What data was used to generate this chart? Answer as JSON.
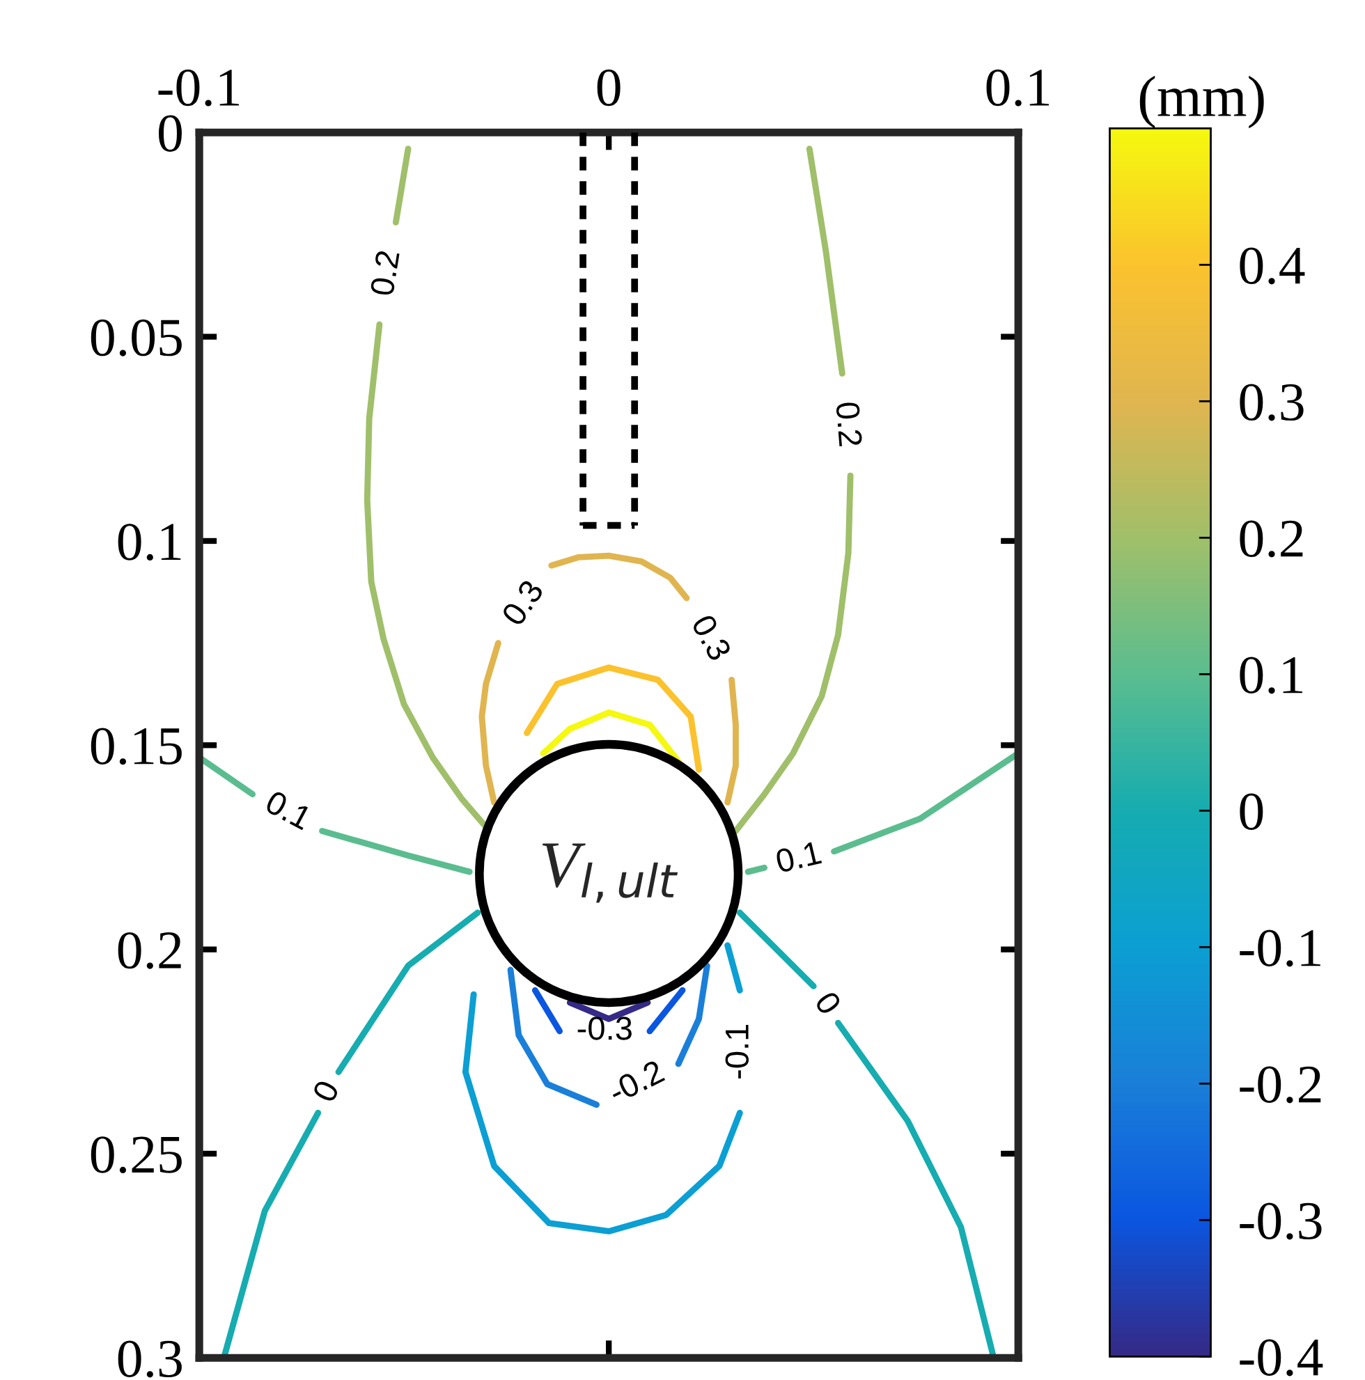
{
  "chart_data": {
    "type": "line",
    "clabel": "(mm)",
    "clim": [
      -0.4,
      0.5
    ],
    "cticks": [
      -0.4,
      -0.3,
      -0.2,
      -0.1,
      0,
      0.1,
      0.2,
      0.3,
      0.4
    ],
    "xlim": [
      -0.1,
      0.1
    ],
    "xticks": [
      -0.1,
      0,
      0.1
    ],
    "ylim": [
      0.3,
      0
    ],
    "yticks": [
      0,
      0.05,
      0.1,
      0.15,
      0.2,
      0.25,
      0.3
    ],
    "line_style": "solid",
    "series": [
      {
        "color": "#352a87",
        "x": [
          -0.0095,
          0,
          0.0095
        ],
        "values": [
          0.213,
          0.217,
          0.213
        ]
      },
      {
        "name": "-0.3",
        "color": "#0b56e0",
        "x": [
          -0.018,
          -0.012,
          null,
          0.01,
          0.018
        ],
        "values": [
          0.21,
          0.22,
          null,
          0.22,
          0.21
        ]
      },
      {
        "name": "-0.2",
        "color": "#1a7fd8",
        "x": [
          -0.024,
          -0.022,
          -0.015,
          -0.003,
          null,
          0.017,
          0.022,
          0.024
        ],
        "values": [
          0.205,
          0.221,
          0.233,
          0.238,
          null,
          0.228,
          0.217,
          0.204
        ]
      },
      {
        "name": "-0.1",
        "color": "#0b9fd3",
        "x": [
          -0.033,
          -0.035,
          -0.028,
          -0.0146,
          0,
          0.014,
          0.027,
          0.032,
          null,
          0.032,
          0.029
        ],
        "values": [
          0.211,
          0.23,
          0.253,
          0.267,
          0.269,
          0.265,
          0.253,
          0.24,
          null,
          0.21,
          0.199
        ]
      },
      {
        "name": "0",
        "color": "#16acb0",
        "x": [
          -0.032,
          -0.049,
          -0.066,
          null,
          -0.071,
          -0.084,
          -0.094,
          null,
          0.032,
          0.05,
          null,
          0.056,
          0.073,
          0.086,
          0.094
        ],
        "values": [
          0.191,
          0.204,
          0.23,
          null,
          0.24,
          0.264,
          0.3,
          null,
          0.191,
          0.209,
          null,
          0.218,
          0.242,
          0.268,
          0.3
        ]
      },
      {
        "name": "0.1",
        "color": "#5bbd8f",
        "x": [
          -0.1,
          -0.087,
          null,
          -0.07,
          -0.049,
          -0.034,
          null,
          0.034,
          0.038,
          null,
          0.055,
          0.076,
          0.1
        ],
        "values": [
          0.153,
          0.162,
          null,
          0.171,
          0.177,
          0.181,
          null,
          0.181,
          0.18,
          null,
          0.176,
          0.168,
          0.152
        ]
      },
      {
        "name": "0.2",
        "color": "#a0bf6a",
        "x": [
          -0.049,
          -0.052,
          null,
          -0.056,
          -0.0585,
          -0.059,
          -0.058,
          -0.055,
          -0.05,
          -0.043,
          -0.036,
          -0.03,
          null,
          0.049,
          0.053,
          0.057,
          null,
          0.059,
          0.0585,
          0.056,
          0.052,
          0.045,
          0.038,
          0.031
        ],
        "values": [
          0.004,
          0.022,
          null,
          0.047,
          0.07,
          0.09,
          0.11,
          0.124,
          0.14,
          0.153,
          0.163,
          0.17,
          null,
          0.004,
          0.029,
          0.059,
          null,
          0.084,
          0.103,
          0.123,
          0.138,
          0.152,
          0.162,
          0.171
        ]
      },
      {
        "name": "0.3",
        "color": "#e0b550",
        "x": [
          -0.028,
          -0.03,
          -0.031,
          -0.03,
          -0.027,
          null,
          -0.014,
          -0.0075,
          0,
          0.008,
          0.015,
          0.019,
          null,
          0.03,
          0.031,
          0.031,
          0.029
        ],
        "values": [
          0.164,
          0.155,
          0.143,
          0.135,
          0.125,
          null,
          0.106,
          0.104,
          0.1036,
          0.105,
          0.109,
          0.114,
          null,
          0.134,
          0.145,
          0.155,
          0.164
        ]
      },
      {
        "color": "#fbc22e",
        "x": [
          -0.02,
          -0.0126,
          0,
          0.012,
          0.02,
          0.022
        ],
        "values": [
          0.147,
          0.135,
          0.131,
          0.134,
          0.143,
          0.156
        ]
      },
      {
        "color": "#f5f80f",
        "x": [
          -0.016,
          -0.0095,
          0,
          0.01,
          0.017
        ],
        "values": [
          0.152,
          0.146,
          0.142,
          0.145,
          0.154
        ]
      }
    ],
    "annotations": [
      "V$_{l,ult}$"
    ]
  }
}
